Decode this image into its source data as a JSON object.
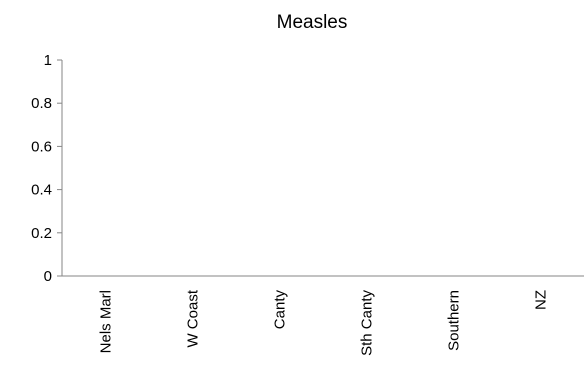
{
  "chart_data": {
    "type": "bar",
    "title": "Measles",
    "categories": [
      "Nels Marl",
      "W Coast",
      "Canty",
      "Sth Canty",
      "Southern",
      "NZ"
    ],
    "values": [
      0,
      0,
      0,
      0,
      0,
      0
    ],
    "xlabel": "",
    "ylabel": "",
    "ylim": [
      0,
      1
    ],
    "yticks": [
      "0",
      "0.2",
      "0.4",
      "0.6",
      "0.8",
      "1"
    ],
    "grid": false,
    "legend": "none"
  }
}
